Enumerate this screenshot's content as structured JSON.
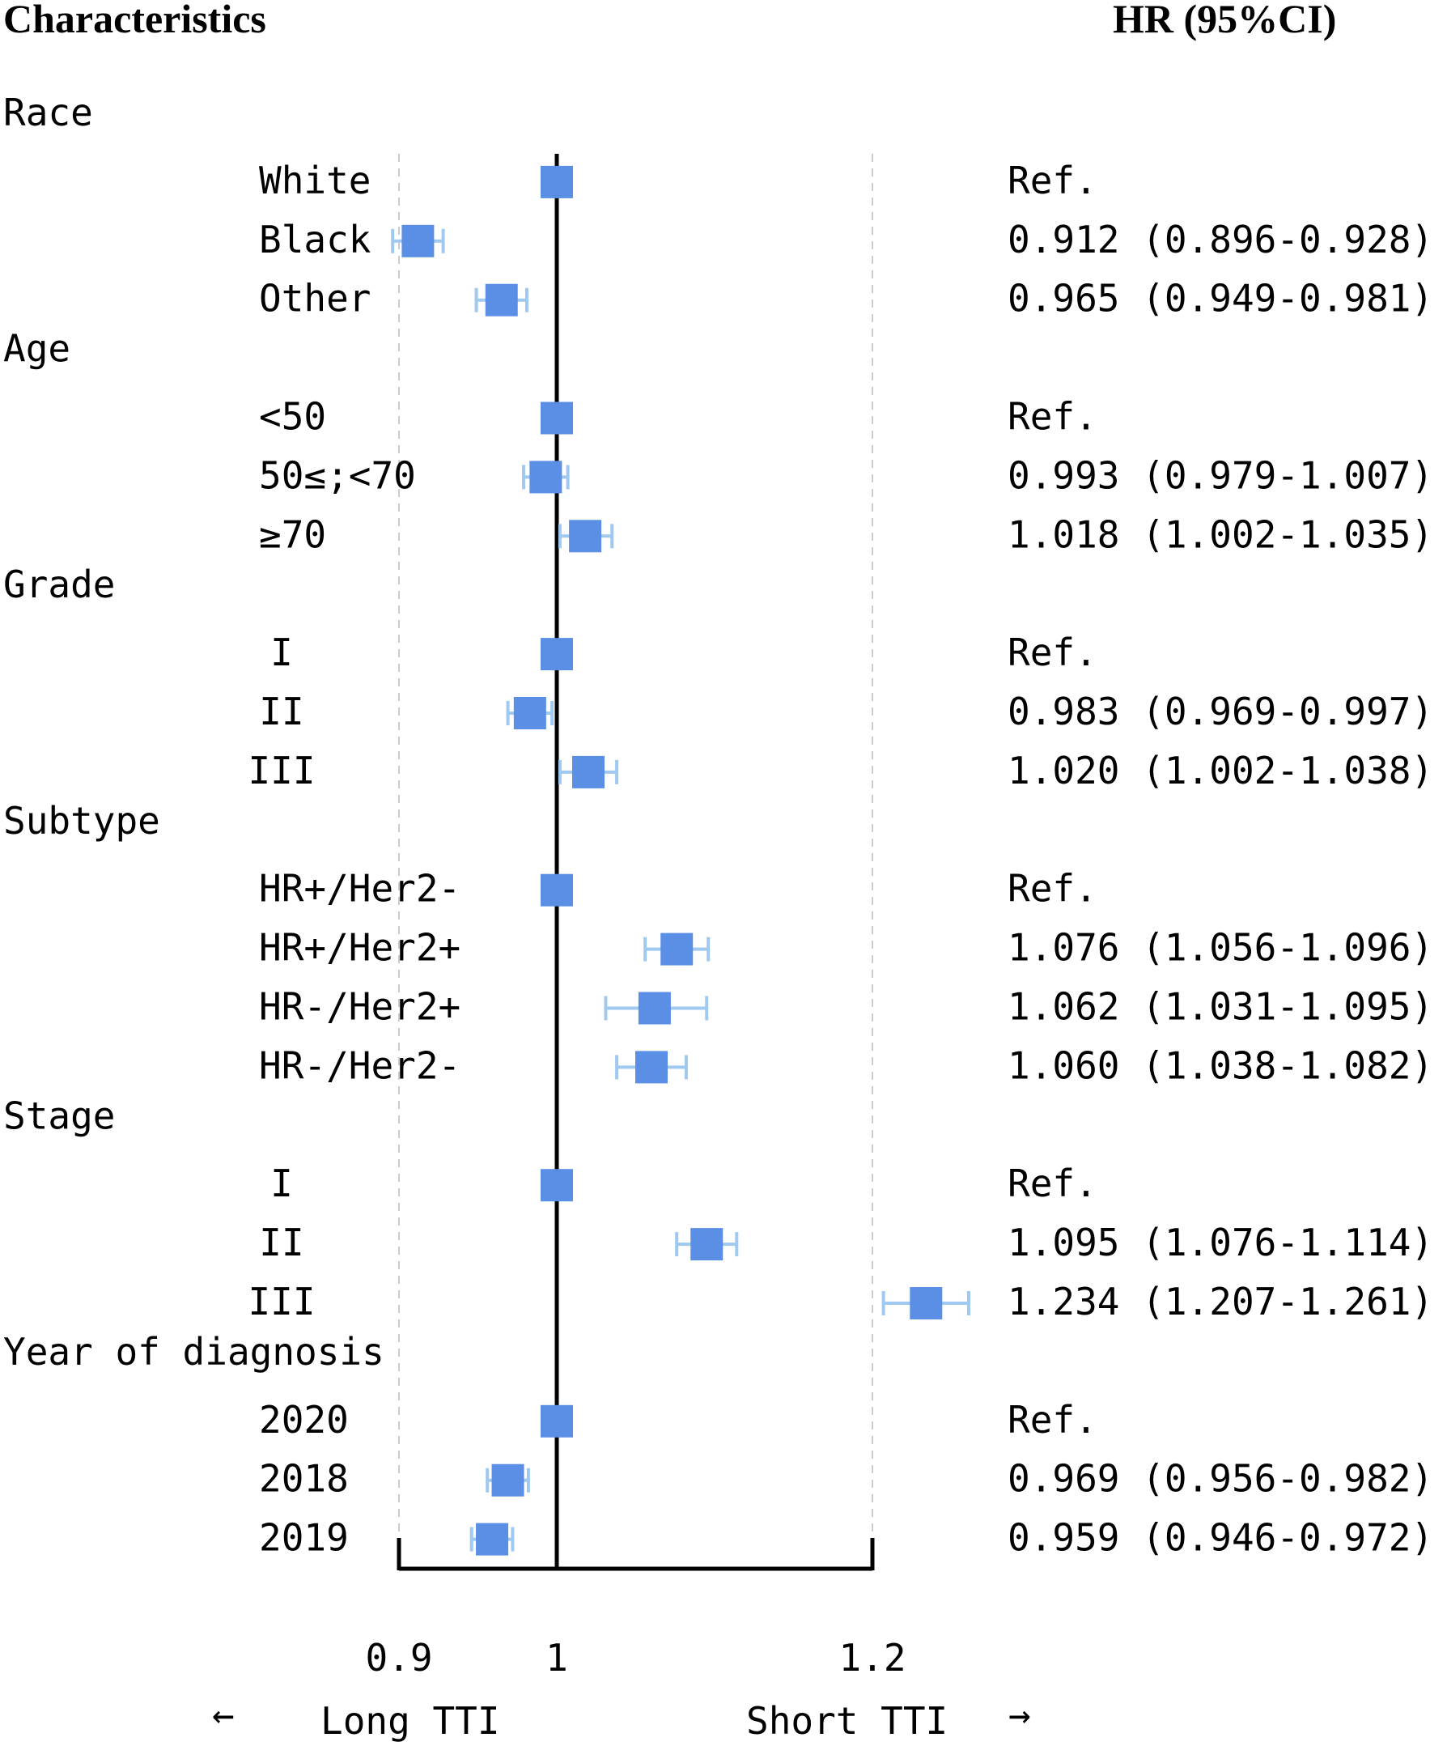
{
  "chart_data": {
    "type": "forest",
    "column_headers": {
      "left": "Characteristics",
      "right": "HR (95%CI)"
    },
    "groups": [
      {
        "name": "Race",
        "rows": [
          {
            "label": "White",
            "hr": 1.0,
            "lo": null,
            "hi": null,
            "text": "Ref."
          },
          {
            "label": "Black",
            "hr": 0.912,
            "lo": 0.896,
            "hi": 0.928,
            "text": "0.912 (0.896-0.928)"
          },
          {
            "label": "Other",
            "hr": 0.965,
            "lo": 0.949,
            "hi": 0.981,
            "text": "0.965 (0.949-0.981)"
          }
        ]
      },
      {
        "name": "Age",
        "rows": [
          {
            "label": "<50",
            "hr": 1.0,
            "lo": null,
            "hi": null,
            "text": "Ref."
          },
          {
            "label": "50≤;<70",
            "hr": 0.993,
            "lo": 0.979,
            "hi": 1.007,
            "text": "0.993 (0.979-1.007)"
          },
          {
            "label": "≥70",
            "hr": 1.018,
            "lo": 1.002,
            "hi": 1.035,
            "text": "1.018 (1.002-1.035)"
          }
        ]
      },
      {
        "name": "Grade",
        "rows": [
          {
            "label": "I",
            "hr": 1.0,
            "lo": null,
            "hi": null,
            "text": "Ref."
          },
          {
            "label": "II",
            "hr": 0.983,
            "lo": 0.969,
            "hi": 0.997,
            "text": "0.983 (0.969-0.997)"
          },
          {
            "label": "III",
            "hr": 1.02,
            "lo": 1.002,
            "hi": 1.038,
            "text": "1.020 (1.002-1.038)"
          }
        ]
      },
      {
        "name": "Subtype",
        "rows": [
          {
            "label": "HR+/Her2-",
            "hr": 1.0,
            "lo": null,
            "hi": null,
            "text": "Ref."
          },
          {
            "label": "HR+/Her2+",
            "hr": 1.076,
            "lo": 1.056,
            "hi": 1.096,
            "text": "1.076 (1.056-1.096)"
          },
          {
            "label": "HR-/Her2+",
            "hr": 1.062,
            "lo": 1.031,
            "hi": 1.095,
            "text": "1.062 (1.031-1.095)"
          },
          {
            "label": "HR-/Her2-",
            "hr": 1.06,
            "lo": 1.038,
            "hi": 1.082,
            "text": "1.060 (1.038-1.082)"
          }
        ]
      },
      {
        "name": "Stage",
        "rows": [
          {
            "label": "I",
            "hr": 1.0,
            "lo": null,
            "hi": null,
            "text": "Ref."
          },
          {
            "label": "II",
            "hr": 1.095,
            "lo": 1.076,
            "hi": 1.114,
            "text": "1.095 (1.076-1.114)"
          },
          {
            "label": "III",
            "hr": 1.234,
            "lo": 1.207,
            "hi": 1.261,
            "text": "1.234 (1.207-1.261)"
          }
        ]
      },
      {
        "name": "Year of diagnosis",
        "rows": [
          {
            "label": "2020",
            "hr": 1.0,
            "lo": null,
            "hi": null,
            "text": "Ref."
          },
          {
            "label": "2018",
            "hr": 0.969,
            "lo": 0.956,
            "hi": 0.982,
            "text": "0.969 (0.956-0.982)"
          },
          {
            "label": "2019",
            "hr": 0.959,
            "lo": 0.946,
            "hi": 0.972,
            "text": "0.959 (0.946-0.972)"
          }
        ]
      }
    ],
    "x_ticks": [
      0.9,
      1,
      1.2
    ],
    "x_tick_labels": [
      "0.9",
      "1",
      "1.2"
    ],
    "xlim": [
      0.9,
      1.2
    ],
    "reference_line": 1,
    "dashed_gridlines": [
      0.9,
      1.2
    ],
    "direction_labels": {
      "left": "Long TTI",
      "right": "Short TTI"
    },
    "colors": {
      "point": "#5b8fe6",
      "ci": "#9fc9f0",
      "axis": "#000000",
      "grid": "#cccccc"
    }
  }
}
